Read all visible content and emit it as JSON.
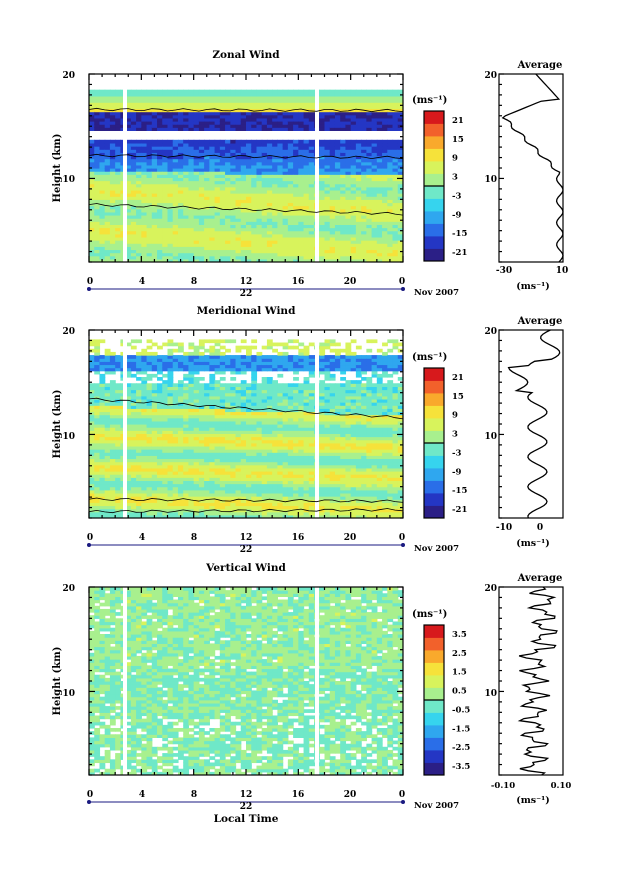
{
  "chart_data": [
    {
      "type": "heatmap",
      "title": "Zonal Wind",
      "xlabel": "",
      "ylabel": "Height (km)",
      "x_ticks": [
        "0",
        "4",
        "8",
        "12",
        "16",
        "20",
        "0"
      ],
      "y_ticks": [
        "20",
        "10"
      ],
      "ylim": [
        2,
        20
      ],
      "date_label": "22",
      "month_label": "Nov 2007",
      "colorbar": {
        "unit": "(ms⁻¹)",
        "ticks": [
          "21",
          "15",
          "9",
          "3",
          "-3",
          "-9",
          "-15",
          "-21"
        ],
        "range": [
          -24,
          24
        ]
      },
      "average": {
        "title": "Average",
        "xlim": [
          -30,
          10
        ],
        "x_ticks": [
          "-30",
          "10"
        ],
        "y_ticks": [
          "20",
          "10"
        ],
        "xlabel": "(ms⁻¹)"
      }
    },
    {
      "type": "heatmap",
      "title": "Meridional Wind",
      "xlabel": "",
      "ylabel": "Height (km)",
      "x_ticks": [
        "0",
        "4",
        "8",
        "12",
        "16",
        "20",
        "0"
      ],
      "y_ticks": [
        "20",
        "10"
      ],
      "ylim": [
        2,
        20
      ],
      "date_label": "22",
      "month_label": "Nov 2007",
      "colorbar": {
        "unit": "(ms⁻¹)",
        "ticks": [
          "21",
          "15",
          "9",
          "3",
          "-3",
          "-9",
          "-15",
          "-21"
        ],
        "range": [
          -24,
          24
        ]
      },
      "average": {
        "title": "Average",
        "xlim": [
          -10,
          10
        ],
        "x_ticks": [
          "-10",
          "0"
        ],
        "y_ticks": [
          "20",
          "10"
        ],
        "xlabel": "(ms⁻¹)"
      }
    },
    {
      "type": "heatmap",
      "title": "Vertical Wind",
      "xlabel": "Local Time",
      "ylabel": "Height (km)",
      "x_ticks": [
        "0",
        "4",
        "8",
        "12",
        "16",
        "20",
        "0"
      ],
      "y_ticks": [
        "20",
        "10"
      ],
      "ylim": [
        2,
        20
      ],
      "date_label": "22",
      "month_label": "Nov 2007",
      "colorbar": {
        "unit": "(ms⁻¹)",
        "ticks": [
          "3.5",
          "2.5",
          "1.5",
          "0.5",
          "-0.5",
          "-1.5",
          "-2.5",
          "-3.5"
        ],
        "range": [
          -4,
          4
        ]
      },
      "average": {
        "title": "Average",
        "xlim": [
          -0.1,
          0.1
        ],
        "x_ticks": [
          "-0.10",
          "0.10"
        ],
        "y_ticks": [
          "20",
          "10"
        ],
        "xlabel": "(ms⁻¹)"
      }
    }
  ],
  "colors": {
    "scale": [
      "#2b1f86",
      "#2436c4",
      "#2a6ee8",
      "#2fa7ef",
      "#36d4ee",
      "#6fe8c8",
      "#a8f08e",
      "#d8f35c",
      "#f6e23a",
      "#f9a92c",
      "#f2612b",
      "#d7191c"
    ],
    "contour": "#000000",
    "gap": "#ffffff"
  }
}
